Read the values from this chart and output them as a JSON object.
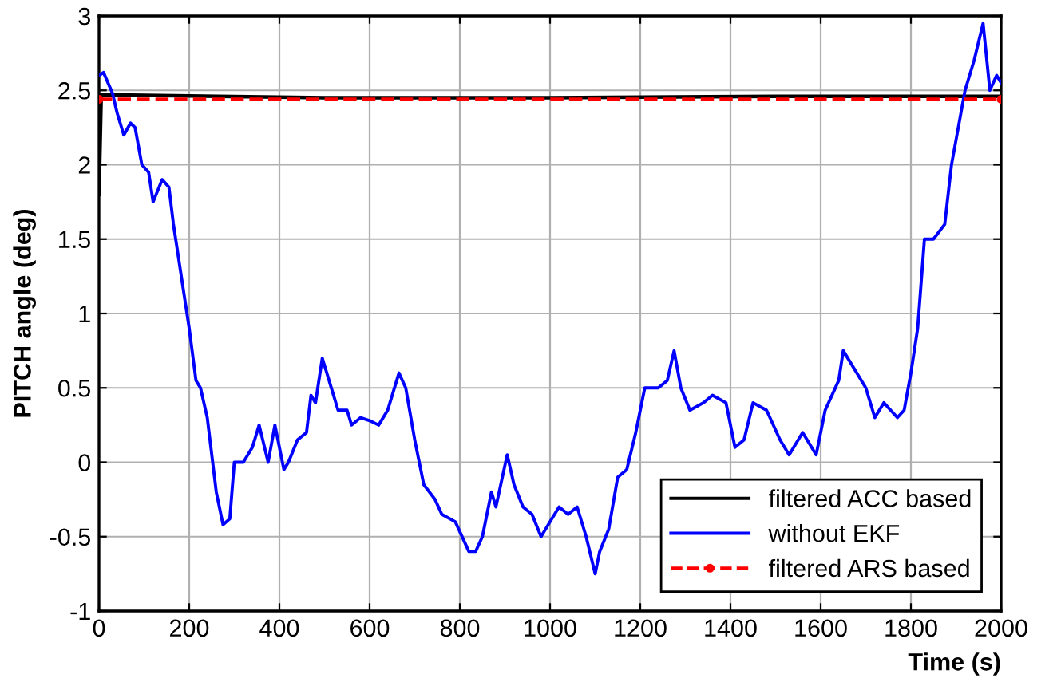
{
  "chart_data": {
    "type": "line",
    "xlabel": "Time (s)",
    "ylabel": "PITCH angle (deg)",
    "xlim": [
      0,
      2000
    ],
    "xticks": [
      0,
      200,
      400,
      600,
      800,
      1000,
      1200,
      1400,
      1600,
      1800,
      2000
    ],
    "ylim": [
      -1,
      3
    ],
    "yticks": [
      -1,
      -0.5,
      0,
      0.5,
      1,
      1.5,
      2,
      2.5,
      3
    ],
    "grid": true,
    "legend": "bottom right",
    "series": [
      {
        "name": "filtered ACC based",
        "color": "#000000",
        "line_style": "solid",
        "marker": "none",
        "x": [
          0,
          5,
          500,
          1000,
          1500,
          2000
        ],
        "values": [
          1.8,
          2.47,
          2.45,
          2.45,
          2.46,
          2.46
        ]
      },
      {
        "name": "without EKF",
        "color": "#0000ff",
        "line_style": "solid",
        "marker": "none",
        "x": [
          0,
          10,
          30,
          40,
          55,
          70,
          80,
          95,
          110,
          120,
          140,
          155,
          165,
          185,
          200,
          215,
          225,
          240,
          260,
          275,
          290,
          300,
          320,
          340,
          355,
          375,
          390,
          410,
          420,
          440,
          460,
          470,
          480,
          495,
          510,
          530,
          550,
          560,
          580,
          600,
          620,
          640,
          665,
          680,
          700,
          720,
          745,
          760,
          790,
          820,
          835,
          850,
          870,
          880,
          905,
          920,
          940,
          960,
          980,
          1000,
          1020,
          1040,
          1060,
          1080,
          1100,
          1110,
          1130,
          1150,
          1170,
          1190,
          1210,
          1240,
          1260,
          1275,
          1290,
          1310,
          1340,
          1360,
          1390,
          1410,
          1430,
          1450,
          1480,
          1510,
          1530,
          1560,
          1590,
          1610,
          1640,
          1650,
          1680,
          1700,
          1720,
          1740,
          1770,
          1785,
          1800,
          1815,
          1830,
          1850,
          1875,
          1890,
          1920,
          1940,
          1960,
          1975,
          1990,
          2000
        ],
        "values": [
          2.6,
          2.62,
          2.48,
          2.35,
          2.2,
          2.28,
          2.25,
          2.0,
          1.95,
          1.75,
          1.9,
          1.85,
          1.6,
          1.2,
          0.9,
          0.55,
          0.5,
          0.3,
          -0.2,
          -0.42,
          -0.38,
          0.0,
          0.0,
          0.1,
          0.25,
          0.0,
          0.25,
          -0.05,
          0.0,
          0.15,
          0.2,
          0.45,
          0.4,
          0.7,
          0.55,
          0.35,
          0.35,
          0.25,
          0.3,
          0.28,
          0.25,
          0.35,
          0.6,
          0.5,
          0.15,
          -0.15,
          -0.25,
          -0.35,
          -0.4,
          -0.6,
          -0.6,
          -0.5,
          -0.2,
          -0.3,
          0.05,
          -0.15,
          -0.3,
          -0.35,
          -0.5,
          -0.4,
          -0.3,
          -0.35,
          -0.3,
          -0.5,
          -0.75,
          -0.6,
          -0.45,
          -0.1,
          -0.05,
          0.2,
          0.5,
          0.5,
          0.55,
          0.75,
          0.5,
          0.35,
          0.4,
          0.45,
          0.4,
          0.1,
          0.15,
          0.4,
          0.35,
          0.15,
          0.05,
          0.2,
          0.05,
          0.35,
          0.55,
          0.75,
          0.6,
          0.5,
          0.3,
          0.4,
          0.3,
          0.35,
          0.6,
          0.9,
          1.5,
          1.5,
          1.6,
          2.0,
          2.5,
          2.7,
          2.95,
          2.5,
          2.6,
          2.55
        ]
      },
      {
        "name": "filtered ARS based",
        "color": "#ff0000",
        "line_style": "dashed",
        "marker": "circle",
        "x": [
          0,
          2000
        ],
        "values": [
          2.44,
          2.44
        ]
      }
    ]
  }
}
